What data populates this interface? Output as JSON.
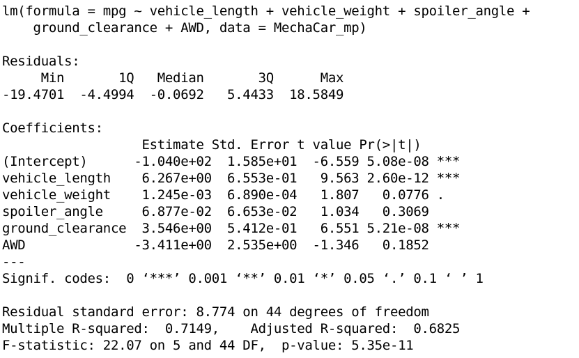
{
  "call": {
    "line1": "lm(formula = mpg ~ vehicle_length + vehicle_weight + spoiler_angle +",
    "line2": "    ground_clearance + AWD, data = MechaCar_mp)"
  },
  "residuals": {
    "label": "Residuals:",
    "header": "     Min       1Q   Median       3Q      Max ",
    "values": "-19.4701  -4.4994  -0.0692   5.4433  18.5849 "
  },
  "coefficients": {
    "label": "Coefficients:",
    "header": "                  Estimate Std. Error t value Pr(>|t|)    ",
    "rows": [
      "(Intercept)      -1.040e+02  1.585e+01  -6.559 5.08e-08 ***",
      "vehicle_length    6.267e+00  6.553e-01   9.563 2.60e-12 ***",
      "vehicle_weight    1.245e-03  6.890e-04   1.807   0.0776 .  ",
      "spoiler_angle     6.877e-02  6.653e-02   1.034   0.3069    ",
      "ground_clearance  3.546e+00  5.412e-01   6.551 5.21e-08 ***",
      "AWD              -3.411e+00  2.535e+00  -1.346   0.1852    "
    ],
    "separator": "---",
    "signif": "Signif. codes:  0 ‘***’ 0.001 ‘**’ 0.01 ‘*’ 0.05 ‘.’ 0.1 ‘ ’ 1"
  },
  "summary": {
    "rse": "Residual standard error: 8.774 on 44 degrees of freedom",
    "rsq": "Multiple R-squared:  0.7149,\tAdjusted R-squared:  0.6825 ",
    "fstat": "F-statistic: 22.07 on 5 and 44 DF,  p-value: 5.35e-11"
  }
}
